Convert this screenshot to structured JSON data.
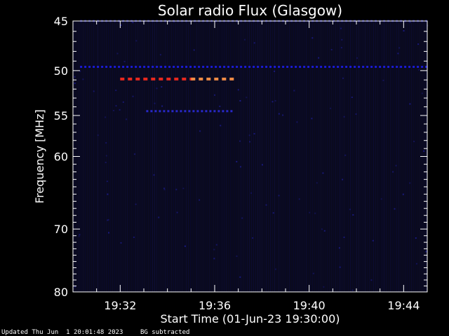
{
  "chart_data": {
    "type": "heatmap",
    "title": "Solar radio Flux (Glasgow)",
    "xlabel": "Start Time (01-Jun-23 19:30:00)",
    "ylabel": "Frequency [MHz]",
    "x_tick_labels": [
      "19:32",
      "19:36",
      "19:40",
      "19:44"
    ],
    "x_ticks_minutes": [
      2,
      6,
      10,
      14
    ],
    "xlim_minutes": [
      0,
      15
    ],
    "y_tick_labels": [
      "45",
      "50",
      "55",
      "60",
      "70",
      "80"
    ],
    "y_ticks": [
      45,
      50,
      55,
      60,
      70,
      80
    ],
    "ylim": [
      45,
      80
    ],
    "y_scale": "log",
    "background_color": "#0a0a1e",
    "emission_bands": [
      {
        "freq_mhz": 50.9,
        "start_min": 2.0,
        "end_min": 5.0,
        "intensity": "high",
        "color": "#e8281e"
      },
      {
        "freq_mhz": 50.9,
        "start_min": 5.0,
        "end_min": 6.7,
        "intensity": "medium",
        "color": "#f08c46"
      },
      {
        "freq_mhz": 49.6,
        "start_min": 0.3,
        "end_min": 15.0,
        "intensity": "low",
        "color": "#1a1ad2"
      },
      {
        "freq_mhz": 54.5,
        "start_min": 3.1,
        "end_min": 6.7,
        "intensity": "low",
        "color": "#2828c8"
      },
      {
        "freq_mhz": 45.0,
        "start_min": 0.3,
        "end_min": 15.0,
        "intensity": "faint",
        "color": "#141478"
      }
    ]
  },
  "footer": {
    "updated": "Updated Thu Jun  1 20:01:48 2023",
    "bg_note": "BG subtracted"
  }
}
